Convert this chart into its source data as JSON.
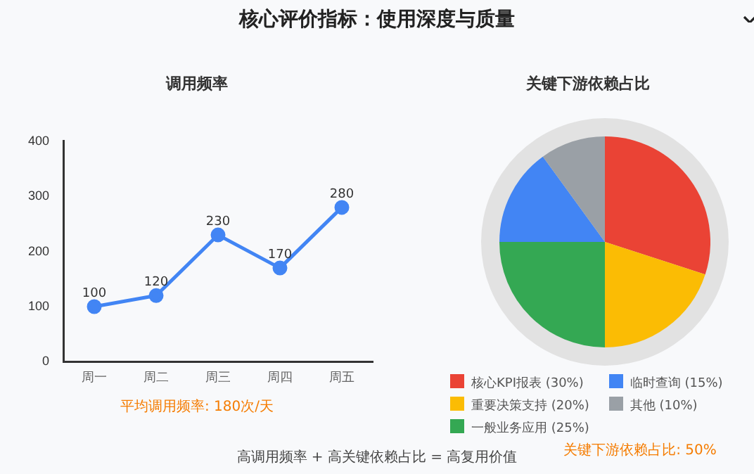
{
  "chart_data": [
    {
      "type": "line",
      "title": "调用频率",
      "categories": [
        "周一",
        "周二",
        "周三",
        "周四",
        "周五"
      ],
      "series": [
        {
          "color": "#4285f4",
          "values": [
            100,
            120,
            230,
            170,
            280
          ]
        }
      ],
      "ylim": [
        0,
        400
      ],
      "yticks": [
        0,
        100,
        200,
        300,
        400
      ],
      "grid": false,
      "legend": false,
      "marker": "circle",
      "data_labels": true,
      "annotations": [
        "平均调用频率: 180次/天",
        "核心评价指标：使用深度与质量",
        "高调用频率 + 高关键依赖占比 = 高复用价值"
      ]
    },
    {
      "type": "pie",
      "title": "关键下游依赖占比",
      "categories": [
        "核心KPI报表 (30%)",
        "重要决策支持 (20%)",
        "一般业务应用 (25%)",
        "临时查询 (15%)",
        "其他 (10%)"
      ],
      "values": [
        30,
        20,
        25,
        15,
        10
      ],
      "colors": [
        "#ea4335",
        "#fbbc04",
        "#34a853",
        "#4285f4",
        "#9aa0a6"
      ],
      "legend": "bottom",
      "annotations": [
        "关键下游依赖占比: 50%"
      ]
    }
  ]
}
